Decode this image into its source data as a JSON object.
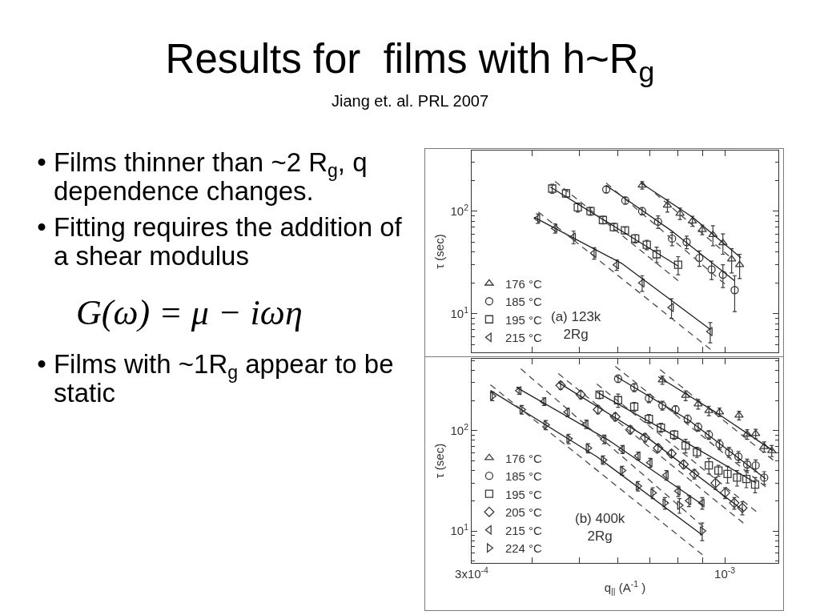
{
  "chart_data": [
    {
      "type": "other",
      "title": "Results for  films with h~R$_{g}$",
      "subtitle": "Jiang et. al. PRL 2007",
      "annotations": [
        "• Films thinner than ~2 R$_{g}$, q dependence changes.",
        "• Fitting requires the addition of a shear modulus",
        "G(ω) = μ − iωη",
        "• Films with ~1R$_{g}$ appear to be static"
      ]
    },
    {
      "type": "scatter",
      "ylabel": "τ (sec)",
      "annotations": [
        "(a) 123k\n2Rg"
      ],
      "log": "xy",
      "legend": "bottom left",
      "tick_labels": "y",
      "xlim": [
        0.0003,
        0.00129
      ],
      "xticks": [
        0.0003,
        0.0004,
        0.0005,
        0.0006,
        0.0007,
        0.0008,
        0.0009,
        0.001
      ],
      "ylim": [
        4.2,
        390
      ],
      "yticks": [
        {
          "value": 5,
          "label": null
        },
        {
          "value": 6,
          "label": null
        },
        {
          "value": 7,
          "label": null
        },
        {
          "value": 8,
          "label": null
        },
        {
          "value": 9,
          "label": null
        },
        {
          "value": 10,
          "label": "10$^{1}$"
        },
        {
          "value": 20,
          "label": null
        },
        {
          "value": 30,
          "label": null
        },
        {
          "value": 40,
          "label": null
        },
        {
          "value": 50,
          "label": null
        },
        {
          "value": 60,
          "label": null
        },
        {
          "value": 70,
          "label": null
        },
        {
          "value": 80,
          "label": null
        },
        {
          "value": 90,
          "label": null
        },
        {
          "value": 100,
          "label": "10$^{2}$"
        },
        {
          "value": 200,
          "label": null
        },
        {
          "value": 300,
          "label": null
        }
      ],
      "series": [
        {
          "name": "176 °C",
          "type": "scatter",
          "marker": "triangle",
          "color": "#3a3a3a",
          "x": [
            0.000675,
            0.000761,
            0.000808,
            0.000857,
            0.000898,
            0.000945,
            0.000991,
            0.001033,
            0.001073
          ],
          "values": [
            179,
            114,
            95,
            80,
            66,
            59,
            49,
            34,
            30
          ],
          "errors": [
            15,
            16,
            12,
            9,
            7,
            13,
            11,
            9,
            8
          ]
        },
        {
          "name": "185 °C",
          "type": "scatter",
          "marker": "circle",
          "color": "#3a3a3a",
          "x": [
            0.000569,
            0.000623,
            0.000675,
            0.000728,
            0.000778,
            0.000834,
            0.000886,
            0.000939,
            0.000991,
            0.001048
          ],
          "values": [
            163,
            127,
            100,
            79,
            54,
            50,
            35,
            27,
            24,
            17
          ],
          "errors": [
            12,
            10,
            8,
            11,
            8,
            7,
            6,
            5.5,
            6,
            6.5
          ]
        },
        {
          "name": "195 °C",
          "type": "scatter",
          "marker": "square",
          "color": "#3a3a3a",
          "x": [
            0.00044,
            0.00047,
            0.000497,
            0.000528,
            0.00056,
            0.00059,
            0.000622,
            0.000653,
            0.00069,
            0.000723,
            0.000801
          ],
          "values": [
            166,
            149,
            109,
            100,
            82,
            70,
            65,
            54,
            47,
            38,
            30
          ],
          "errors": [
            17,
            12,
            11,
            9,
            7,
            6,
            5,
            5,
            5,
            6.5,
            6
          ]
        },
        {
          "name": "215 °C",
          "type": "scatter",
          "marker": "triangle-left",
          "color": "#3a3a3a",
          "x": [
            0.000411,
            0.000446,
            0.000487,
            0.000537,
            0.000598,
            0.000675,
            0.000776,
            0.000933
          ],
          "values": [
            85,
            68,
            56,
            39,
            30,
            20,
            11.5,
            6.7
          ],
          "errors": [
            9,
            7,
            8,
            5,
            3.5,
            3.5,
            2.5,
            1.5
          ]
        },
        {
          "type": "line",
          "line_style": "solid",
          "color": "#1e1e1e",
          "x": [
            0.000671,
            0.000859,
            0.00108
          ],
          "values": [
            188,
            87,
            35
          ]
        },
        {
          "type": "line",
          "line_style": "solid",
          "color": "#1e1e1e",
          "x": [
            0.000569,
            0.000781,
            0.001047
          ],
          "values": [
            178,
            63,
            21
          ]
        },
        {
          "type": "line",
          "line_style": "solid",
          "color": "#1e1e1e",
          "x": [
            0.000436,
            0.000591,
            0.000802
          ],
          "values": [
            172,
            71,
            29
          ]
        },
        {
          "type": "line",
          "line_style": "solid",
          "color": "#1e1e1e",
          "x": [
            0.000404,
            0.000612,
            0.000934
          ],
          "values": [
            87,
            31,
            7
          ]
        },
        {
          "type": "line",
          "line_style": "dashed",
          "color": "#4a4a4a",
          "x": [
            0.000718,
            0.00102
          ],
          "values": [
            149,
            36.5
          ]
        },
        {
          "type": "line",
          "line_style": "dashed",
          "color": "#4a4a4a",
          "x": [
            0.000569,
            0.001
          ],
          "values": [
            188,
            19.5
          ]
        },
        {
          "type": "line",
          "line_style": "dashed",
          "color": "#4a4a4a",
          "x": [
            0.000446,
            0.000801
          ],
          "values": [
            195,
            21
          ]
        },
        {
          "type": "line",
          "line_style": "dashed",
          "color": "#4a4a4a",
          "x": [
            0.000412,
            0.000934
          ],
          "values": [
            98,
            4.5
          ]
        }
      ]
    },
    {
      "type": "scatter",
      "ylabel": "τ (sec)",
      "xlabel": "q$_{||}$ (A$^{-1}$ )",
      "annotations": [
        "(b) 400k\n2Rg"
      ],
      "log": "xy",
      "legend": "bottom left",
      "xlim": [
        0.0003,
        0.00129
      ],
      "xticks": [
        {
          "value": 0.0003,
          "label": "3x10$^{-4}$"
        },
        {
          "value": 0.0004,
          "label": null
        },
        {
          "value": 0.0005,
          "label": null
        },
        {
          "value": 0.0006,
          "label": null
        },
        {
          "value": 0.0007,
          "label": null
        },
        {
          "value": 0.0008,
          "label": null
        },
        {
          "value": 0.0009,
          "label": null
        },
        {
          "value": 0.001,
          "label": "10$^{-3}$"
        }
      ],
      "ylim": [
        4.8,
        520
      ],
      "yticks": [
        {
          "value": 5,
          "label": null
        },
        {
          "value": 6,
          "label": null
        },
        {
          "value": 7,
          "label": null
        },
        {
          "value": 8,
          "label": null
        },
        {
          "value": 9,
          "label": null
        },
        {
          "value": 10,
          "label": "10$^{1}$"
        },
        {
          "value": 20,
          "label": null
        },
        {
          "value": 30,
          "label": null
        },
        {
          "value": 40,
          "label": null
        },
        {
          "value": 50,
          "label": null
        },
        {
          "value": 60,
          "label": null
        },
        {
          "value": 70,
          "label": null
        },
        {
          "value": 80,
          "label": null
        },
        {
          "value": 90,
          "label": null
        },
        {
          "value": 100,
          "label": "10$^{2}$"
        },
        {
          "value": 200,
          "label": null
        },
        {
          "value": 300,
          "label": null
        },
        {
          "value": 400,
          "label": null
        },
        {
          "value": 500,
          "label": null
        }
      ],
      "series": [
        {
          "name": "176 °C",
          "type": "scatter",
          "marker": "triangle",
          "color": "#3a3a3a",
          "x": [
            0.000743,
            0.00083,
            0.000881,
            0.000927,
            0.000975,
            0.00107,
            0.001112,
            0.001158,
            0.001206,
            0.00125
          ],
          "values": [
            319,
            224,
            184,
            158,
            153,
            142,
            92,
            93,
            69,
            63
          ],
          "errors": [
            30,
            25,
            20,
            17,
            15,
            14,
            10,
            10,
            8,
            8
          ]
        },
        {
          "name": "185 °C",
          "type": "scatter",
          "marker": "circle",
          "color": "#3a3a3a",
          "x": [
            0.000602,
            0.00065,
            0.000697,
            0.000743,
            0.000791,
            0.000838,
            0.000881,
            0.000927,
            0.000975,
            0.00102,
            0.001067,
            0.001112,
            0.001158,
            0.001206
          ],
          "values": [
            329,
            269,
            210,
            178,
            162,
            131,
            109,
            91,
            73,
            61,
            55,
            46,
            45,
            34
          ],
          "errors": [
            28,
            25,
            20,
            18,
            15,
            12,
            10,
            9,
            8,
            7,
            7,
            6,
            6,
            5
          ]
        },
        {
          "name": "195 °C",
          "type": "scatter",
          "marker": "square",
          "color": "#3a3a3a",
          "x": [
            0.000551,
            0.000602,
            0.00065,
            0.000697,
            0.000738,
            0.000786,
            0.00083,
            0.000876,
            0.000927,
            0.00097,
            0.001013,
            0.00106,
            0.001108,
            0.001155
          ],
          "values": [
            228,
            201,
            173,
            131,
            107,
            91,
            71,
            61,
            45,
            40,
            37,
            34,
            33,
            29
          ],
          "errors": [
            20,
            30,
            18,
            14,
            11,
            9,
            11,
            7,
            8,
            5,
            7,
            6,
            6,
            5
          ]
        },
        {
          "name": "205 °C",
          "type": "scatter",
          "marker": "diamond",
          "color": "#3a3a3a",
          "x": [
            0.000458,
            0.000504,
            0.000547,
            0.000594,
            0.000638,
            0.000684,
            0.000728,
            0.000776,
            0.000822,
            0.000865,
            0.000957,
            0.001001,
            0.001046,
            0.001087
          ],
          "values": [
            282,
            228,
            162,
            137,
            102,
            85,
            67,
            59,
            46,
            37,
            30,
            24,
            19,
            17
          ],
          "errors": [
            25,
            20,
            15,
            12,
            9,
            8,
            6,
            5,
            4,
            4,
            4,
            3,
            2.5,
            2.5
          ]
        },
        {
          "name": "215 °C",
          "type": "scatter",
          "marker": "triangle-left",
          "color": "#3a3a3a",
          "x": [
            0.000376,
            0.000423,
            0.000473,
            0.000517,
            0.000563,
            0.000614,
            0.000662,
            0.000701,
            0.000757,
            0.000801,
            0.000843,
            0.000898
          ],
          "values": [
            250,
            195,
            153,
            116,
            82,
            65,
            56,
            48,
            36,
            25,
            20,
            19
          ],
          "errors": [
            20,
            17,
            15,
            11,
            8,
            6,
            5,
            5,
            4,
            3,
            2.5,
            2.5
          ]
        },
        {
          "name": "224 °C",
          "type": "scatter",
          "marker": "triangle-right",
          "color": "#3a3a3a",
          "x": [
            0.000331,
            0.000381,
            0.000427,
            0.000476,
            0.000522,
            0.000561,
            0.000614,
            0.000662,
            0.00071,
            0.000752,
            0.000806,
            0.000898
          ],
          "values": [
            221,
            162,
            114,
            83,
            67,
            51,
            40,
            28,
            24,
            19,
            18,
            10
          ],
          "errors": [
            22,
            16,
            12,
            9,
            7,
            5,
            4,
            3,
            3,
            2.5,
            3,
            2
          ]
        },
        {
          "type": "line",
          "line_style": "solid",
          "color": "#1e1e1e",
          "x": [
            0.000729,
            0.000956,
            0.001258
          ],
          "values": [
            344,
            153,
            63
          ]
        },
        {
          "type": "line",
          "line_style": "solid",
          "color": "#1e1e1e",
          "x": [
            0.000594,
            0.000843,
            0.001215
          ],
          "values": [
            350,
            127,
            33
          ]
        },
        {
          "type": "line",
          "line_style": "solid",
          "color": "#1e1e1e",
          "x": [
            0.000544,
            0.000796,
            0.001161
          ],
          "values": [
            242,
            86,
            30
          ]
        },
        {
          "type": "line",
          "line_style": "solid",
          "color": "#1e1e1e",
          "x": [
            0.000453,
            0.000697,
            0.001092
          ],
          "values": [
            302,
            83,
            16
          ]
        },
        {
          "type": "line",
          "line_style": "solid",
          "color": "#1e1e1e",
          "x": [
            0.000371,
            0.000576,
            0.000903
          ],
          "values": [
            270,
            80,
            18
          ]
        },
        {
          "type": "line",
          "line_style": "solid",
          "color": "#1e1e1e",
          "x": [
            0.000328,
            0.000544,
            0.000899
          ],
          "values": [
            251,
            55,
            9.1
          ]
        },
        {
          "type": "line",
          "line_style": "dashed",
          "color": "#4a4a4a",
          "x": [
            0.000735,
            0.001258
          ],
          "values": [
            406,
            51
          ]
        },
        {
          "type": "line",
          "line_style": "dashed",
          "color": "#4a4a4a",
          "x": [
            0.000594,
            0.001215
          ],
          "values": [
            437,
            27.5
          ]
        },
        {
          "type": "line",
          "line_style": "dashed",
          "color": "#4a4a4a",
          "x": [
            0.000544,
            0.001161
          ],
          "values": [
            291,
            15.6
          ]
        },
        {
          "type": "line",
          "line_style": "dashed",
          "color": "#4a4a4a",
          "x": [
            0.000453,
            0.001092
          ],
          "values": [
            370,
            12
          ]
        },
        {
          "type": "line",
          "line_style": "dashed",
          "color": "#4a4a4a",
          "x": [
            0.000379,
            0.000903
          ],
          "values": [
            413,
            11
          ]
        },
        {
          "type": "line",
          "line_style": "dashed",
          "color": "#4a4a4a",
          "x": [
            0.000328,
            0.000899
          ],
          "values": [
            286,
            5.8
          ]
        }
      ]
    }
  ]
}
